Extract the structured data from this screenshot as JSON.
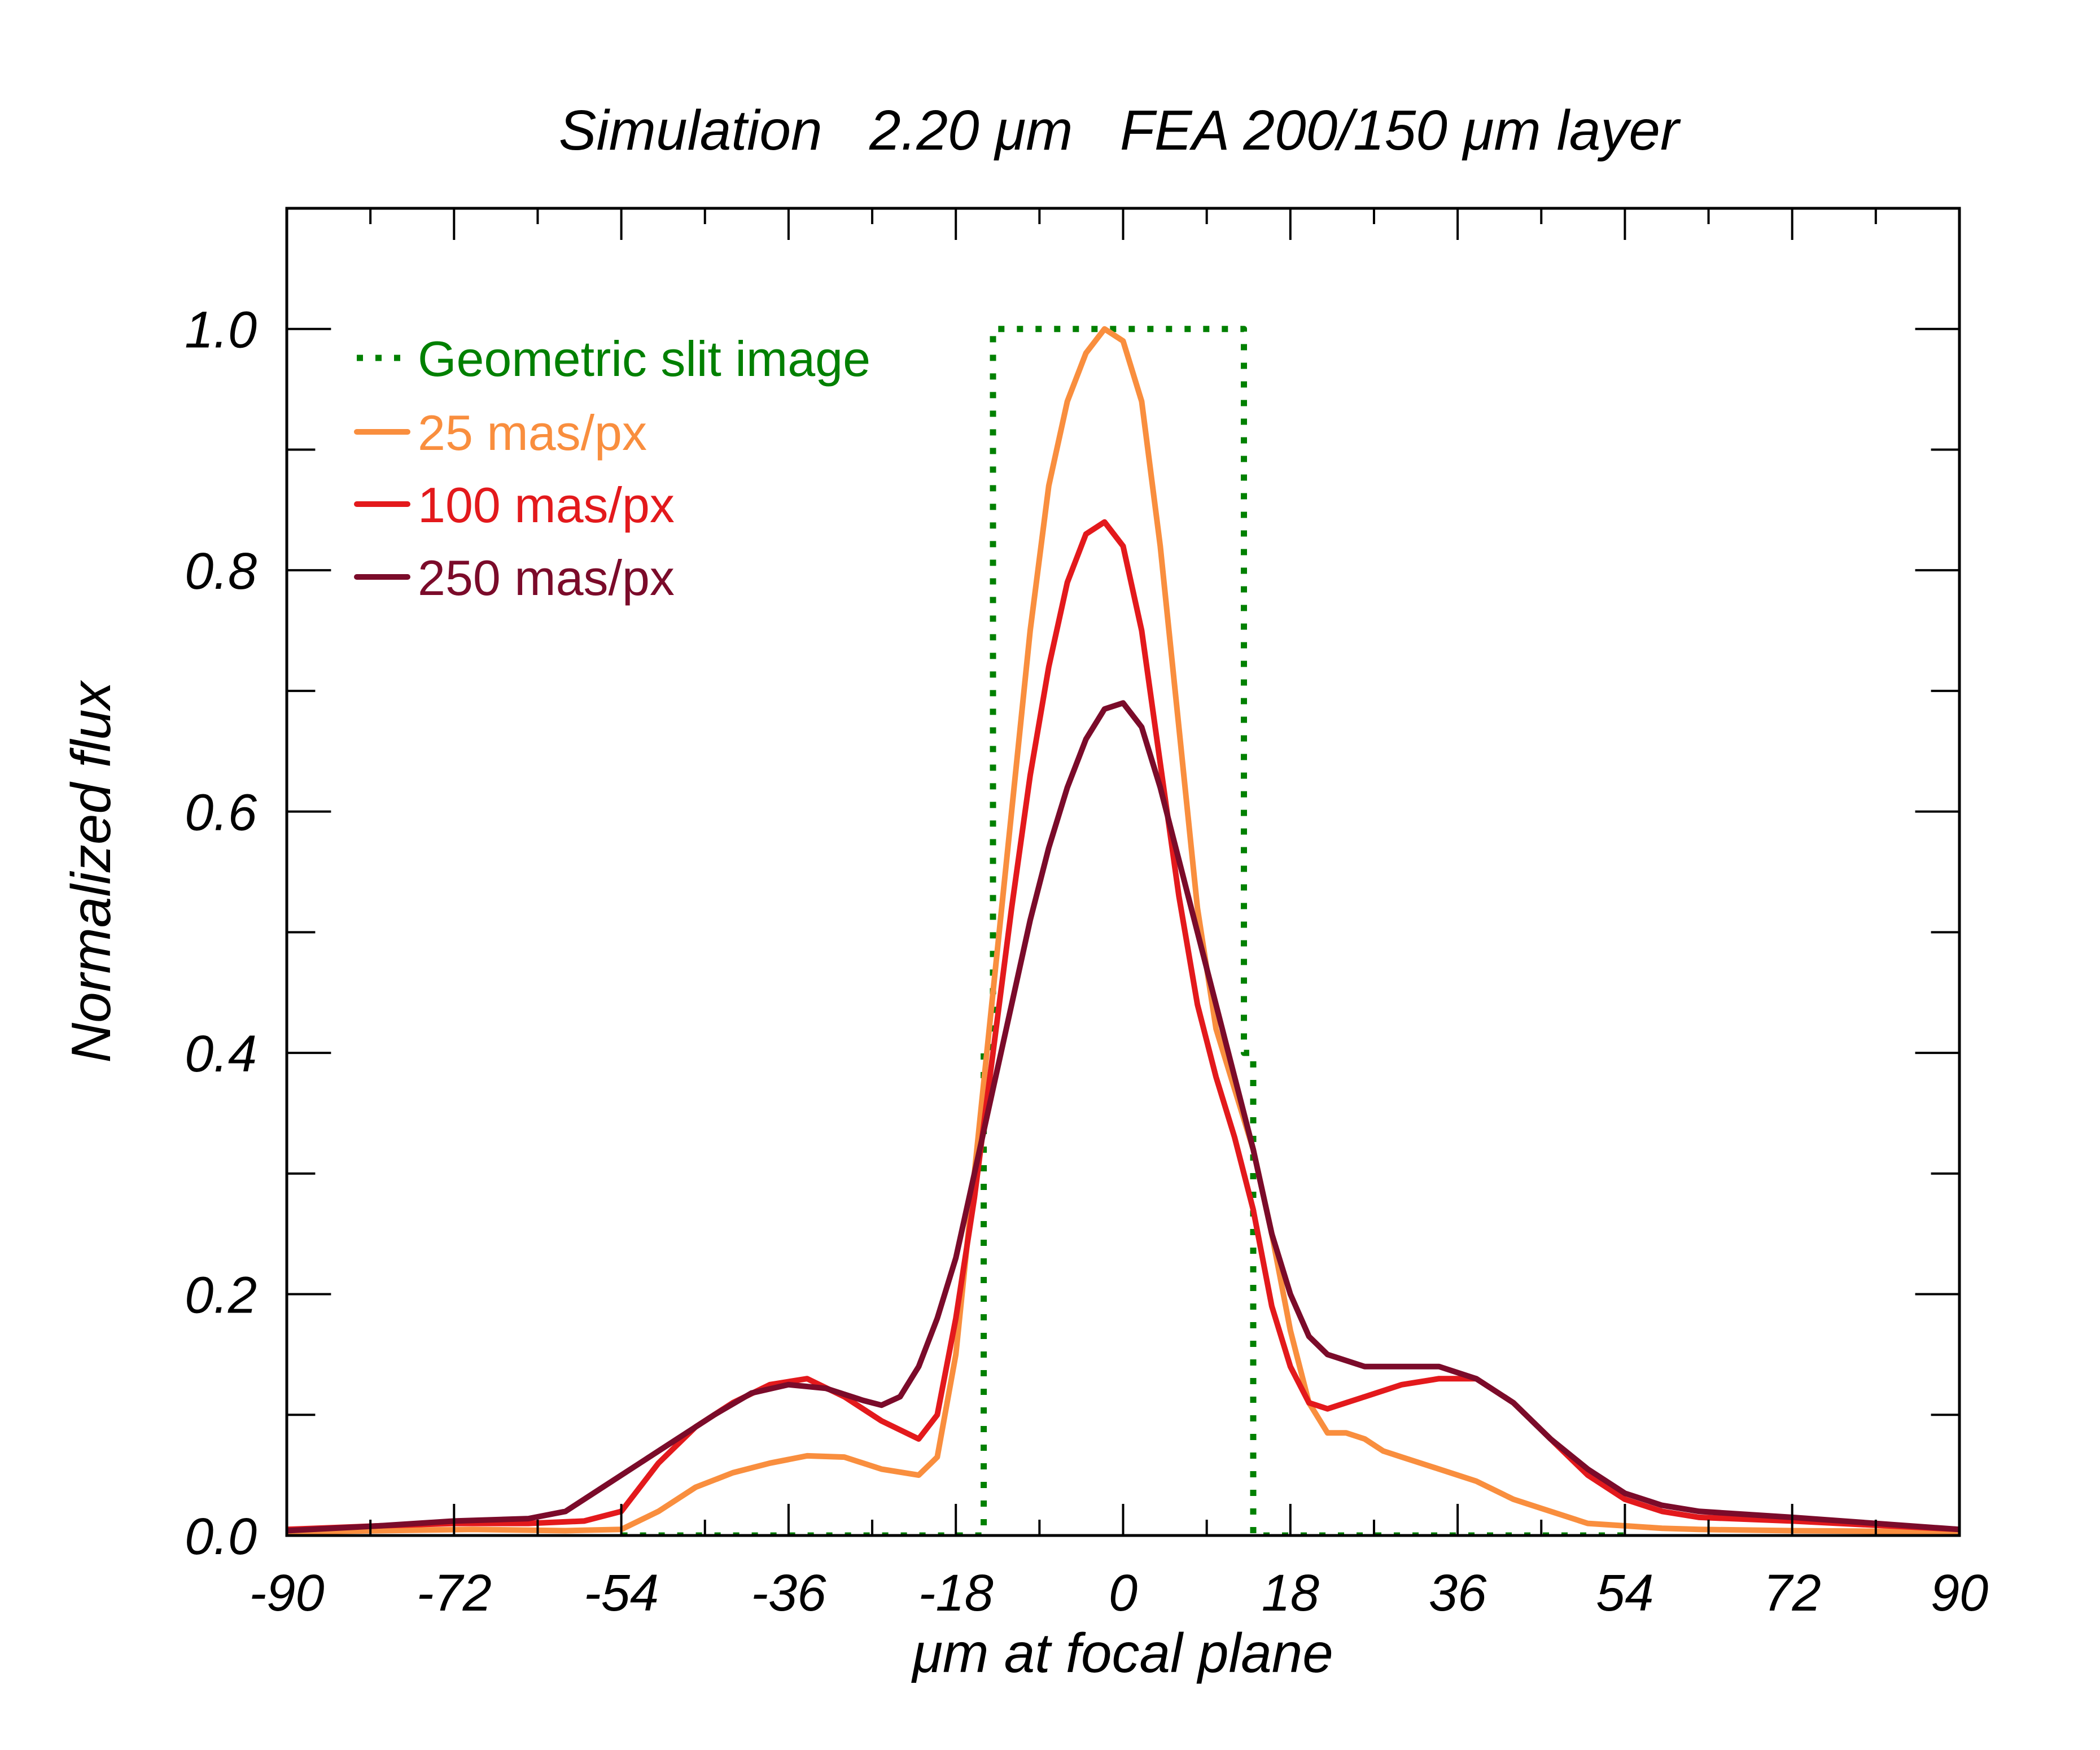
{
  "chart_data": {
    "type": "line",
    "title": "Simulation   2.20 μm   FEA 200/150 μm layer",
    "xlabel": "μm at focal plane",
    "ylabel": "Normalized flux",
    "xlim": [
      -90,
      90
    ],
    "ylim": [
      0,
      1.1
    ],
    "xticks": [
      -90,
      -72,
      -54,
      -36,
      -18,
      0,
      18,
      36,
      54,
      72,
      90
    ],
    "xtick_labels": [
      "-90",
      "-72",
      "-54",
      "-36",
      "-18",
      "0",
      "18",
      "36",
      "54",
      "72",
      "90"
    ],
    "yticks": [
      0,
      0.2,
      0.4,
      0.6,
      0.8,
      1.0
    ],
    "ytick_labels": [
      "0.0",
      "0.2",
      "0.4",
      "0.6",
      "0.8",
      "1.0"
    ],
    "grid": false,
    "legend_position": "top-left",
    "series": [
      {
        "name": "Geometric slit image",
        "color": "#008000",
        "style": "dotted",
        "x": [
          -54,
          -15,
          -15,
          -14,
          -14,
          13,
          13,
          14,
          14,
          54
        ],
        "y": [
          0,
          0,
          0.4,
          0.4,
          1.0,
          1.0,
          0.4,
          0.4,
          0,
          0
        ]
      },
      {
        "name": "25 mas/px",
        "color": "#F98E3E",
        "style": "solid",
        "x": [
          -90,
          -80,
          -70,
          -60,
          -54,
          -50,
          -46,
          -42,
          -38,
          -34,
          -30,
          -26,
          -22,
          -20,
          -18,
          -16,
          -14,
          -12,
          -10,
          -8,
          -6,
          -4,
          -2,
          0,
          2,
          4,
          6,
          8,
          10,
          12,
          14,
          16,
          18,
          20,
          22,
          24,
          26,
          28,
          30,
          34,
          38,
          42,
          46,
          50,
          54,
          58,
          62,
          72,
          90
        ],
        "y": [
          0.003,
          0.004,
          0.005,
          0.004,
          0.005,
          0.02,
          0.04,
          0.052,
          0.06,
          0.066,
          0.065,
          0.055,
          0.05,
          0.065,
          0.15,
          0.3,
          0.45,
          0.6,
          0.75,
          0.87,
          0.94,
          0.98,
          1.0,
          0.99,
          0.94,
          0.82,
          0.67,
          0.52,
          0.42,
          0.37,
          0.32,
          0.25,
          0.17,
          0.11,
          0.085,
          0.085,
          0.08,
          0.07,
          0.065,
          0.055,
          0.045,
          0.03,
          0.02,
          0.01,
          0.008,
          0.006,
          0.005,
          0.004,
          0.003
        ]
      },
      {
        "name": "100 mas/px",
        "color": "#E3191C",
        "style": "solid",
        "x": [
          -90,
          -80,
          -72,
          -64,
          -58,
          -54,
          -50,
          -46,
          -42,
          -38,
          -34,
          -30,
          -26,
          -22,
          -20,
          -18,
          -16,
          -14,
          -12,
          -10,
          -8,
          -6,
          -4,
          -2,
          0,
          2,
          4,
          6,
          8,
          10,
          12,
          14,
          16,
          18,
          20,
          22,
          24,
          26,
          28,
          30,
          34,
          38,
          42,
          46,
          50,
          54,
          58,
          62,
          72,
          90
        ],
        "y": [
          0.005,
          0.008,
          0.01,
          0.01,
          0.012,
          0.02,
          0.06,
          0.09,
          0.11,
          0.125,
          0.13,
          0.115,
          0.095,
          0.08,
          0.1,
          0.18,
          0.28,
          0.4,
          0.52,
          0.63,
          0.72,
          0.79,
          0.83,
          0.84,
          0.82,
          0.75,
          0.64,
          0.53,
          0.44,
          0.38,
          0.33,
          0.27,
          0.19,
          0.14,
          0.11,
          0.105,
          0.11,
          0.115,
          0.12,
          0.125,
          0.13,
          0.13,
          0.11,
          0.08,
          0.05,
          0.03,
          0.02,
          0.015,
          0.012,
          0.005
        ]
      },
      {
        "name": "250 mas/px",
        "color": "#7B0B2A",
        "style": "solid",
        "x": [
          -90,
          -80,
          -72,
          -64,
          -60,
          -56,
          -52,
          -48,
          -44,
          -40,
          -36,
          -32,
          -28,
          -26,
          -24,
          -22,
          -20,
          -18,
          -16,
          -14,
          -12,
          -10,
          -8,
          -6,
          -4,
          -2,
          0,
          2,
          4,
          6,
          8,
          10,
          12,
          14,
          16,
          18,
          20,
          22,
          26,
          30,
          34,
          38,
          42,
          46,
          50,
          54,
          58,
          62,
          72,
          90
        ],
        "y": [
          0.004,
          0.008,
          0.012,
          0.014,
          0.02,
          0.04,
          0.06,
          0.08,
          0.1,
          0.118,
          0.125,
          0.122,
          0.112,
          0.108,
          0.115,
          0.14,
          0.18,
          0.23,
          0.3,
          0.37,
          0.44,
          0.51,
          0.57,
          0.62,
          0.66,
          0.685,
          0.69,
          0.67,
          0.62,
          0.56,
          0.5,
          0.44,
          0.38,
          0.32,
          0.25,
          0.2,
          0.165,
          0.15,
          0.14,
          0.14,
          0.14,
          0.13,
          0.11,
          0.08,
          0.055,
          0.035,
          0.025,
          0.02,
          0.015,
          0.005
        ]
      }
    ]
  }
}
